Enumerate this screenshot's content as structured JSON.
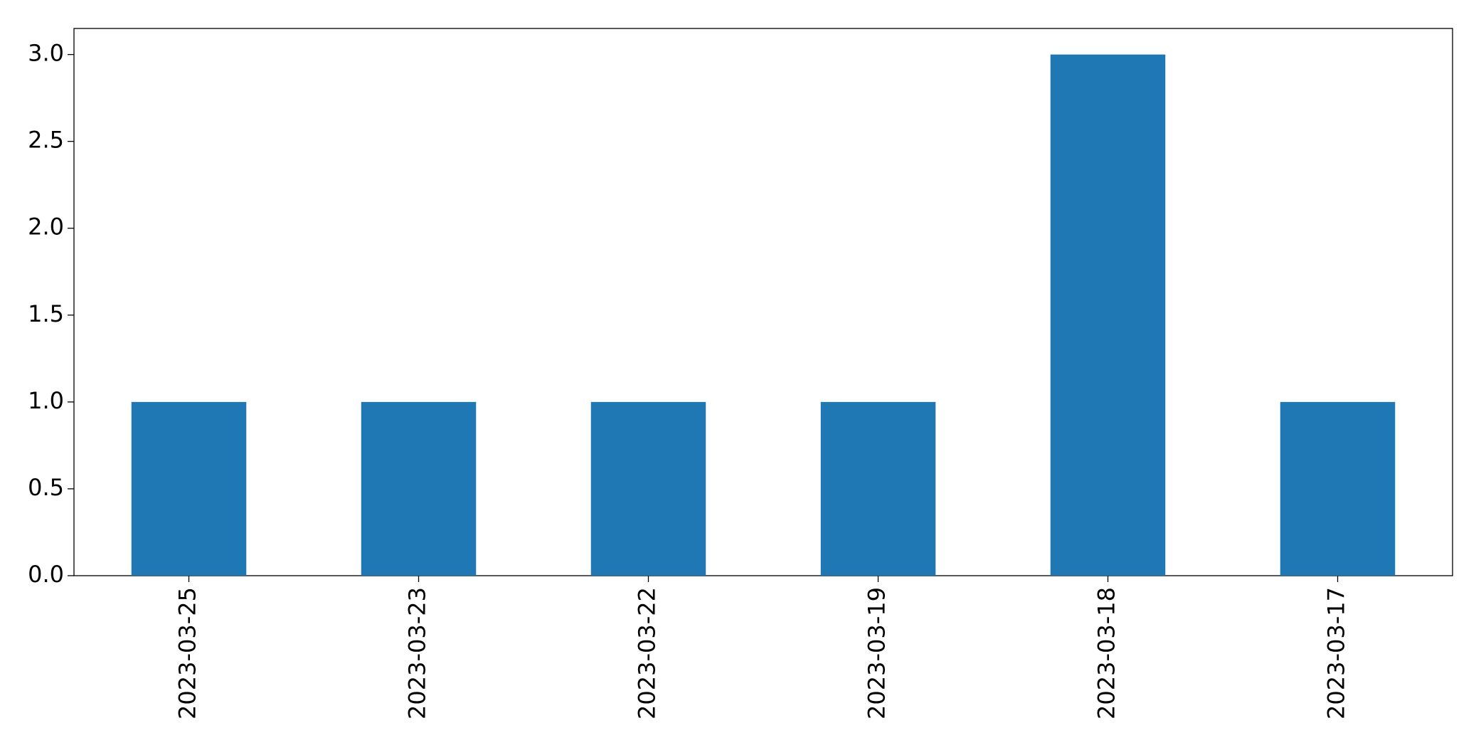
{
  "chart_data": {
    "type": "bar",
    "categories": [
      "2023-03-25",
      "2023-03-23",
      "2023-03-22",
      "2023-03-19",
      "2023-03-18",
      "2023-03-17"
    ],
    "values": [
      1,
      1,
      1,
      1,
      3,
      1
    ],
    "color": "#1f77b4",
    "ylim": [
      0,
      3.15
    ],
    "yticks": [
      {
        "value": 0,
        "label": "0.0"
      },
      {
        "value": 0.5,
        "label": "0.5"
      },
      {
        "value": 1,
        "label": "1.0"
      },
      {
        "value": 1.5,
        "label": "1.5"
      },
      {
        "value": 2,
        "label": "2.0"
      },
      {
        "value": 2.5,
        "label": "2.5"
      },
      {
        "value": 3,
        "label": "3.0"
      }
    ],
    "grid": false
  }
}
